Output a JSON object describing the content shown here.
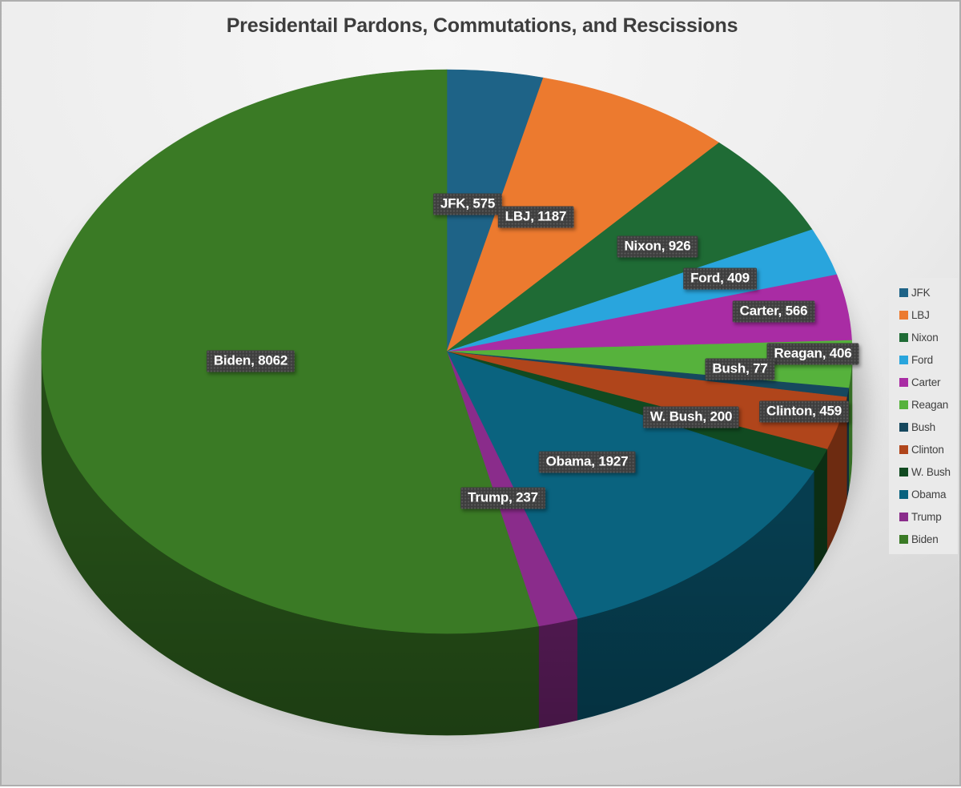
{
  "chart_data": {
    "type": "pie",
    "variant": "3d",
    "title": "Presidentail Pardons, Commutations, and Rescissions",
    "categories": [
      "JFK",
      "LBJ",
      "Nixon",
      "Ford",
      "Carter",
      "Reagan",
      "Bush",
      "Clinton",
      "W. Bush",
      "Obama",
      "Trump",
      "Biden"
    ],
    "values": [
      575,
      1187,
      926,
      409,
      566,
      406,
      77,
      459,
      200,
      1927,
      237,
      8062
    ],
    "colors": [
      "#1E6387",
      "#EC7A2F",
      "#1F6B35",
      "#29A5DD",
      "#A92CA4",
      "#56B23C",
      "#16485E",
      "#B0451B",
      "#114A21",
      "#0A637F",
      "#8A2C8B",
      "#3A7A25"
    ],
    "total": 15031,
    "start_angle_deg": 0,
    "direction": "clockwise",
    "legend_position": "right",
    "data_label_format": "category, value",
    "data_labels": [
      "JFK, 575",
      "LBJ, 1187",
      "Nixon, 926",
      "Ford, 409",
      "Carter, 566",
      "Reagan, 406",
      "Bush, 77",
      "Clinton, 459",
      "W. Bush, 200",
      "Obama, 1927",
      "Trump, 237",
      "Biden, 8062"
    ],
    "label_text_color": "#FFFFFF",
    "label_bg_color": "#3E3E3E",
    "title_color": "#3D3D3D",
    "legend_bg_color": "#EAEAEA",
    "page_border_color": "#AEAEAE"
  }
}
